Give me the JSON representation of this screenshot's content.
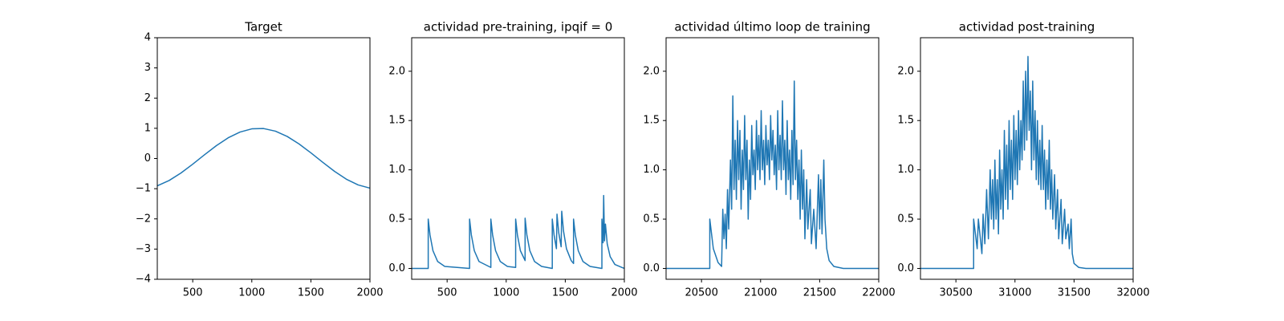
{
  "chart_data": [
    {
      "type": "line",
      "title": "Target",
      "color": "#1f77b4",
      "x": [
        200,
        300,
        400,
        500,
        600,
        700,
        800,
        900,
        1000,
        1100,
        1200,
        1300,
        1400,
        1500,
        1600,
        1700,
        1800,
        1900,
        2000
      ],
      "values": [
        -0.905,
        -0.729,
        -0.482,
        -0.187,
        0.125,
        0.426,
        0.685,
        0.876,
        0.982,
        0.992,
        0.905,
        0.729,
        0.482,
        0.187,
        -0.125,
        -0.426,
        -0.685,
        -0.876,
        -0.982
      ],
      "xlim": [
        200,
        2000
      ],
      "ylim": [
        -4,
        4
      ],
      "xticks": [
        500,
        1000,
        1500,
        2000
      ],
      "yticks": [
        {
          "value": -4,
          "label": "−4"
        },
        {
          "value": -3,
          "label": "−3"
        },
        {
          "value": -2,
          "label": "−2"
        },
        {
          "value": -1,
          "label": "−1"
        },
        0,
        1,
        2,
        3,
        4
      ]
    },
    {
      "type": "line",
      "title": "actividad pre-training, ipqif = 0",
      "color": "#1f77b4",
      "x": [
        200,
        340,
        340,
        355,
        380,
        420,
        480,
        690,
        690,
        705,
        730,
        770,
        870,
        870,
        885,
        910,
        950,
        1010,
        1080,
        1080,
        1095,
        1120,
        1160,
        1160,
        1175,
        1200,
        1240,
        1300,
        1390,
        1390,
        1405,
        1425,
        1430,
        1445,
        1465,
        1470,
        1485,
        1510,
        1550,
        1570,
        1570,
        1585,
        1610,
        1650,
        1710,
        1810,
        1810,
        1820,
        1825,
        1832,
        1840,
        1855,
        1880,
        1920,
        1980,
        2000
      ],
      "values": [
        0,
        0,
        0.5,
        0.34,
        0.18,
        0.07,
        0.02,
        0,
        0.5,
        0.34,
        0.18,
        0.07,
        0.01,
        0.5,
        0.34,
        0.18,
        0.07,
        0.02,
        0.01,
        0.5,
        0.34,
        0.18,
        0.08,
        0.51,
        0.34,
        0.18,
        0.07,
        0.02,
        0,
        0.5,
        0.34,
        0.2,
        0.55,
        0.36,
        0.22,
        0.58,
        0.38,
        0.2,
        0.08,
        0.05,
        0.5,
        0.34,
        0.18,
        0.07,
        0.02,
        0,
        0.5,
        0.26,
        0.74,
        0.28,
        0.45,
        0.25,
        0.12,
        0.04,
        0.01,
        0
      ],
      "xlim": [
        200,
        2000
      ],
      "ylim": [
        -0.11,
        2.34
      ],
      "xticks": [
        500,
        1000,
        1500,
        2000
      ],
      "yticks": [
        {
          "value": 0,
          "label": "0.0"
        },
        0.5,
        {
          "value": 1,
          "label": "1.0"
        },
        1.5,
        {
          "value": 2,
          "label": "2.0"
        }
      ]
    },
    {
      "type": "line",
      "title": "actividad último loop de training",
      "color": "#1f77b4",
      "x": [
        20200,
        20570,
        20570,
        20600,
        20640,
        20670,
        20680,
        20690,
        20700,
        20710,
        20720,
        20730,
        20745,
        20755,
        20765,
        20775,
        20785,
        20795,
        20805,
        20815,
        20825,
        20835,
        20845,
        20855,
        20865,
        20875,
        20885,
        20895,
        20905,
        20915,
        20925,
        20935,
        20945,
        20955,
        20965,
        20975,
        20985,
        20995,
        21005,
        21015,
        21025,
        21035,
        21045,
        21055,
        21065,
        21075,
        21085,
        21095,
        21105,
        21115,
        21125,
        21135,
        21145,
        21155,
        21165,
        21175,
        21185,
        21195,
        21205,
        21215,
        21225,
        21235,
        21245,
        21255,
        21265,
        21275,
        21285,
        21295,
        21305,
        21315,
        21325,
        21335,
        21345,
        21355,
        21365,
        21375,
        21390,
        21400,
        21420,
        21430,
        21450,
        21470,
        21490,
        21500,
        21510,
        21520,
        21535,
        21545,
        21560,
        21580,
        21620,
        21700,
        22000
      ],
      "values": [
        0,
        0,
        0.5,
        0.2,
        0.06,
        0.02,
        0.6,
        0.3,
        0.55,
        0.2,
        0.8,
        0.4,
        1.1,
        0.6,
        1.75,
        0.8,
        1.3,
        0.7,
        1.5,
        0.9,
        1.4,
        0.6,
        1.2,
        0.8,
        1.55,
        0.9,
        1.3,
        0.5,
        1.1,
        0.7,
        1.45,
        0.95,
        1.2,
        0.8,
        1.5,
        1.0,
        1.35,
        0.9,
        1.6,
        1.0,
        1.3,
        0.85,
        1.45,
        1.05,
        1.3,
        0.9,
        1.55,
        1.1,
        1.4,
        0.95,
        1.25,
        0.8,
        1.6,
        1.0,
        1.35,
        0.9,
        1.7,
        1.0,
        1.3,
        0.75,
        1.5,
        0.9,
        1.2,
        0.7,
        1.4,
        0.85,
        1.9,
        0.9,
        1.3,
        0.7,
        1.1,
        0.5,
        1.2,
        0.6,
        1.0,
        0.3,
        0.9,
        0.4,
        0.8,
        0.25,
        0.6,
        0.2,
        0.95,
        0.4,
        0.9,
        0.35,
        1.1,
        0.5,
        0.2,
        0.08,
        0.02,
        0,
        0
      ],
      "xlim": [
        20200,
        22000
      ],
      "ylim": [
        -0.11,
        2.34
      ],
      "xticks": [
        20500,
        21000,
        21500,
        22000
      ],
      "yticks": [
        {
          "value": 0,
          "label": "0.0"
        },
        0.5,
        {
          "value": 1,
          "label": "1.0"
        },
        1.5,
        {
          "value": 2,
          "label": "2.0"
        }
      ]
    },
    {
      "type": "line",
      "title": "actividad post-training",
      "color": "#1f77b4",
      "x": [
        30200,
        30650,
        30650,
        30680,
        30690,
        30720,
        30730,
        30745,
        30760,
        30775,
        30790,
        30800,
        30810,
        30820,
        30830,
        30840,
        30850,
        30860,
        30870,
        30880,
        30890,
        30900,
        30910,
        30920,
        30930,
        30940,
        30950,
        30960,
        30970,
        30980,
        30990,
        31000,
        31010,
        31020,
        31030,
        31040,
        31050,
        31060,
        31070,
        31080,
        31090,
        31100,
        31110,
        31120,
        31130,
        31140,
        31150,
        31160,
        31170,
        31180,
        31190,
        31200,
        31210,
        31220,
        31230,
        31240,
        31250,
        31260,
        31270,
        31280,
        31290,
        31300,
        31310,
        31320,
        31335,
        31345,
        31360,
        31370,
        31390,
        31400,
        31420,
        31430,
        31450,
        31460,
        31475,
        31485,
        31500,
        31540,
        31600,
        32000
      ],
      "values": [
        0,
        0,
        0.5,
        0.2,
        0.5,
        0.15,
        0.55,
        0.25,
        0.8,
        0.3,
        1.0,
        0.5,
        0.9,
        0.4,
        1.1,
        0.5,
        0.9,
        0.35,
        1.2,
        0.6,
        1.0,
        0.5,
        1.4,
        0.7,
        1.25,
        0.6,
        1.5,
        0.8,
        1.3,
        0.7,
        1.55,
        0.9,
        1.4,
        0.85,
        1.6,
        1.0,
        1.5,
        1.1,
        1.9,
        1.2,
        2.0,
        1.3,
        2.15,
        1.4,
        1.8,
        1.0,
        1.9,
        1.1,
        1.6,
        0.9,
        1.5,
        0.85,
        1.3,
        0.8,
        1.45,
        0.8,
        1.2,
        0.6,
        1.1,
        0.7,
        1.3,
        0.6,
        1.0,
        0.5,
        0.95,
        0.4,
        0.8,
        0.3,
        0.7,
        0.25,
        0.6,
        0.3,
        0.45,
        0.2,
        0.5,
        0.15,
        0.05,
        0.01,
        0,
        0
      ],
      "xlim": [
        30200,
        32000
      ],
      "ylim": [
        -0.11,
        2.34
      ],
      "xticks": [
        30500,
        31000,
        31500,
        32000
      ],
      "yticks": [
        {
          "value": 0,
          "label": "0.0"
        },
        0.5,
        {
          "value": 1,
          "label": "1.0"
        },
        1.5,
        {
          "value": 2,
          "label": "2.0"
        }
      ]
    }
  ]
}
